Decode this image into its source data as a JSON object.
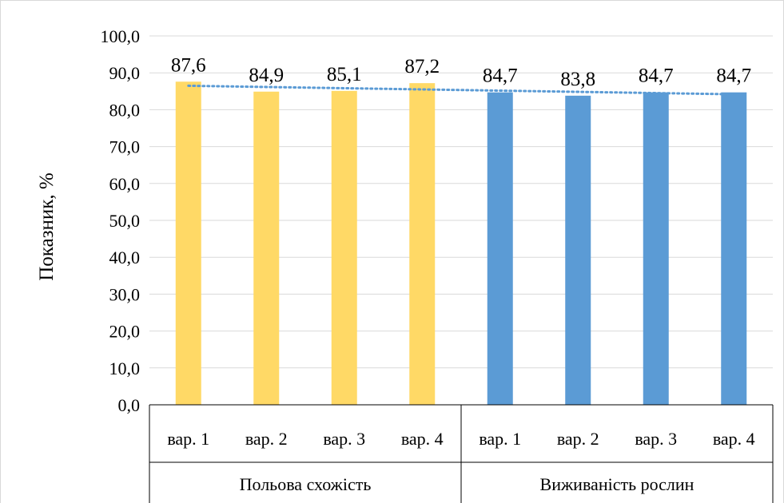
{
  "chart_data": {
    "type": "bar",
    "ylabel": "Показник, %",
    "ylim": [
      0,
      100
    ],
    "yticks": [
      "0,0",
      "10,0",
      "20,0",
      "30,0",
      "40,0",
      "50,0",
      "60,0",
      "70,0",
      "80,0",
      "90,0",
      "100,0"
    ],
    "grid": true,
    "groups": [
      {
        "name": "Польова схожість",
        "color": "#FFD966",
        "categories": [
          "вар. 1",
          "вар. 2",
          "вар. 3",
          "вар. 4"
        ],
        "values": [
          87.6,
          84.9,
          85.1,
          87.2
        ],
        "labels": [
          "87,6",
          "84,9",
          "85,1",
          "87,2"
        ]
      },
      {
        "name": "Виживаність рослин",
        "color": "#5B9BD5",
        "categories": [
          "вар. 1",
          "вар. 2",
          "вар. 3",
          "вар. 4"
        ],
        "values": [
          84.7,
          83.8,
          84.7,
          84.7
        ],
        "labels": [
          "84,7",
          "83,8",
          "84,7",
          "84,7"
        ]
      }
    ],
    "trendline": {
      "type": "linear",
      "style": "dotted",
      "color": "#5B9BD5"
    }
  }
}
